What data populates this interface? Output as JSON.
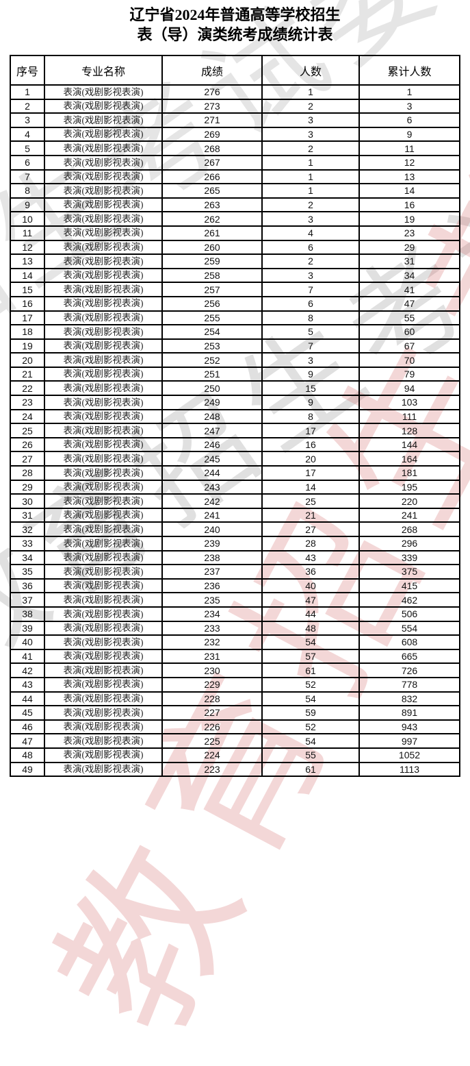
{
  "title": {
    "line1": "辽宁省2024年普通高等学校招生",
    "line2": "表（导）演类统考成绩统计表"
  },
  "watermark": {
    "gray_text": "教育招生考试委员会",
    "pink_text": "教育招生考试",
    "gray_color": "#d9d9d9",
    "pink_color": "#eec2c2"
  },
  "colors": {
    "table_border": "#000000",
    "page_background": "#ffffff",
    "text": "#000000"
  },
  "table": {
    "headers": [
      "序号",
      "专业名称",
      "成绩",
      "人数",
      "累计人数"
    ],
    "header_keys": [
      "index",
      "major",
      "score",
      "count",
      "cumulative"
    ],
    "rows": [
      [
        1,
        "表演(戏剧影视表演)",
        276,
        1,
        1
      ],
      [
        2,
        "表演(戏剧影视表演)",
        273,
        2,
        3
      ],
      [
        3,
        "表演(戏剧影视表演)",
        271,
        3,
        6
      ],
      [
        4,
        "表演(戏剧影视表演)",
        269,
        3,
        9
      ],
      [
        5,
        "表演(戏剧影视表演)",
        268,
        2,
        11
      ],
      [
        6,
        "表演(戏剧影视表演)",
        267,
        1,
        12
      ],
      [
        7,
        "表演(戏剧影视表演)",
        266,
        1,
        13
      ],
      [
        8,
        "表演(戏剧影视表演)",
        265,
        1,
        14
      ],
      [
        9,
        "表演(戏剧影视表演)",
        263,
        2,
        16
      ],
      [
        10,
        "表演(戏剧影视表演)",
        262,
        3,
        19
      ],
      [
        11,
        "表演(戏剧影视表演)",
        261,
        4,
        23
      ],
      [
        12,
        "表演(戏剧影视表演)",
        260,
        6,
        29
      ],
      [
        13,
        "表演(戏剧影视表演)",
        259,
        2,
        31
      ],
      [
        14,
        "表演(戏剧影视表演)",
        258,
        3,
        34
      ],
      [
        15,
        "表演(戏剧影视表演)",
        257,
        7,
        41
      ],
      [
        16,
        "表演(戏剧影视表演)",
        256,
        6,
        47
      ],
      [
        17,
        "表演(戏剧影视表演)",
        255,
        8,
        55
      ],
      [
        18,
        "表演(戏剧影视表演)",
        254,
        5,
        60
      ],
      [
        19,
        "表演(戏剧影视表演)",
        253,
        7,
        67
      ],
      [
        20,
        "表演(戏剧影视表演)",
        252,
        3,
        70
      ],
      [
        21,
        "表演(戏剧影视表演)",
        251,
        9,
        79
      ],
      [
        22,
        "表演(戏剧影视表演)",
        250,
        15,
        94
      ],
      [
        23,
        "表演(戏剧影视表演)",
        249,
        9,
        103
      ],
      [
        24,
        "表演(戏剧影视表演)",
        248,
        8,
        111
      ],
      [
        25,
        "表演(戏剧影视表演)",
        247,
        17,
        128
      ],
      [
        26,
        "表演(戏剧影视表演)",
        246,
        16,
        144
      ],
      [
        27,
        "表演(戏剧影视表演)",
        245,
        20,
        164
      ],
      [
        28,
        "表演(戏剧影视表演)",
        244,
        17,
        181
      ],
      [
        29,
        "表演(戏剧影视表演)",
        243,
        14,
        195
      ],
      [
        30,
        "表演(戏剧影视表演)",
        242,
        25,
        220
      ],
      [
        31,
        "表演(戏剧影视表演)",
        241,
        21,
        241
      ],
      [
        32,
        "表演(戏剧影视表演)",
        240,
        27,
        268
      ],
      [
        33,
        "表演(戏剧影视表演)",
        239,
        28,
        296
      ],
      [
        34,
        "表演(戏剧影视表演)",
        238,
        43,
        339
      ],
      [
        35,
        "表演(戏剧影视表演)",
        237,
        36,
        375
      ],
      [
        36,
        "表演(戏剧影视表演)",
        236,
        40,
        415
      ],
      [
        37,
        "表演(戏剧影视表演)",
        235,
        47,
        462
      ],
      [
        38,
        "表演(戏剧影视表演)",
        234,
        44,
        506
      ],
      [
        39,
        "表演(戏剧影视表演)",
        233,
        48,
        554
      ],
      [
        40,
        "表演(戏剧影视表演)",
        232,
        54,
        608
      ],
      [
        41,
        "表演(戏剧影视表演)",
        231,
        57,
        665
      ],
      [
        42,
        "表演(戏剧影视表演)",
        230,
        61,
        726
      ],
      [
        43,
        "表演(戏剧影视表演)",
        229,
        52,
        778
      ],
      [
        44,
        "表演(戏剧影视表演)",
        228,
        54,
        832
      ],
      [
        45,
        "表演(戏剧影视表演)",
        227,
        59,
        891
      ],
      [
        46,
        "表演(戏剧影视表演)",
        226,
        52,
        943
      ],
      [
        47,
        "表演(戏剧影视表演)",
        225,
        54,
        997
      ],
      [
        48,
        "表演(戏剧影视表演)",
        224,
        55,
        1052
      ],
      [
        49,
        "表演(戏剧影视表演)",
        223,
        61,
        1113
      ]
    ]
  }
}
